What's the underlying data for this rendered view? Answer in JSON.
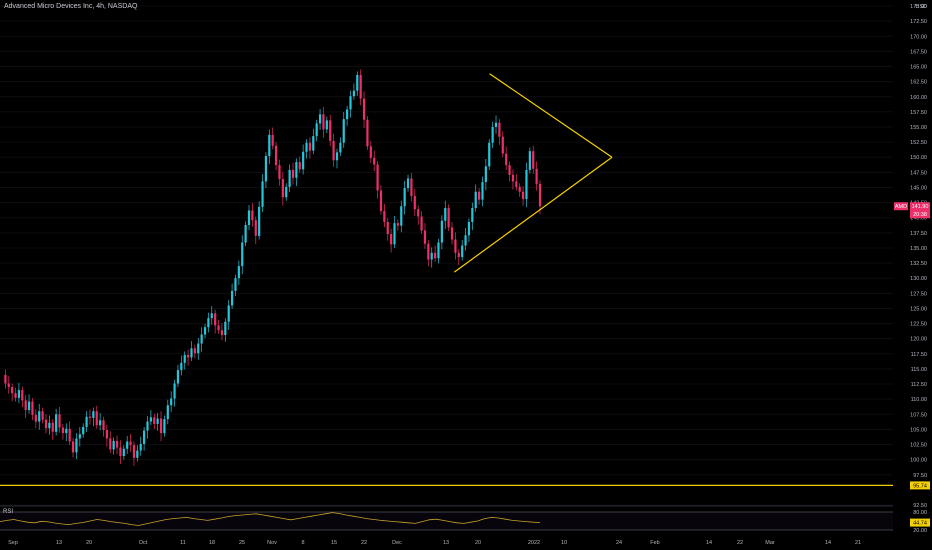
{
  "header": {
    "title": "Advanced Micro Devices Inc, 4h, NASDAQ"
  },
  "price_axis": {
    "currency": "USD",
    "ticks": [
      "175.00",
      "172.50",
      "170.00",
      "167.50",
      "165.00",
      "162.50",
      "160.00",
      "157.50",
      "155.00",
      "152.50",
      "150.00",
      "147.50",
      "145.00",
      "142.50",
      "140.00",
      "137.50",
      "135.00",
      "132.50",
      "130.00",
      "127.50",
      "125.00",
      "122.50",
      "120.00",
      "117.50",
      "115.00",
      "112.50",
      "110.00",
      "107.50",
      "105.00",
      "102.50",
      "100.00",
      "97.50",
      "92.50"
    ],
    "ticker_label": "AMD",
    "last_price": "141.90",
    "countdown": "20:38",
    "hline_price": "95.74"
  },
  "time_axis": {
    "labels": [
      "Sep",
      "13",
      "20",
      "Oct",
      "11",
      "18",
      "25",
      "Nov",
      "8",
      "15",
      "22",
      "Dec",
      "13",
      "20",
      "2022",
      "10",
      "24",
      "Feb",
      "14",
      "22",
      "Mar",
      "14",
      "21"
    ]
  },
  "rsi": {
    "label": "RSI",
    "ticks": [
      "80.00",
      "20.00"
    ],
    "current_value": "44.74"
  },
  "colors": {
    "bull": "#26c6da",
    "bear": "#ef2f6a",
    "trendline": "#f5d000",
    "background": "#000000",
    "axis_text": "#b2b5be",
    "rsi_line": "#c9a227"
  },
  "chart_data": {
    "type": "candlestick",
    "symbol": "AMD",
    "timeframe": "4h",
    "ylim": [
      92.5,
      176.0
    ],
    "x": [
      "Sep",
      "13",
      "20",
      "Oct",
      "11",
      "18",
      "25",
      "Nov",
      "8",
      "15",
      "22",
      "Dec",
      "13",
      "20",
      "2022",
      "10",
      "24",
      "Feb",
      "14",
      "22",
      "Mar",
      "14",
      "21"
    ],
    "close_path": [
      114.0,
      112.6,
      112.0,
      111.0,
      110.2,
      111.5,
      109.8,
      108.2,
      109.6,
      107.4,
      106.3,
      108.0,
      106.6,
      105.2,
      106.1,
      104.6,
      107.5,
      105.3,
      104.4,
      105.1,
      103.0,
      101.2,
      103.5,
      104.2,
      105.4,
      107.1,
      106.9,
      108.0,
      105.7,
      106.5,
      104.9,
      103.5,
      101.7,
      103.1,
      102.0,
      100.6,
      101.8,
      103.0,
      102.4,
      100.3,
      101.5,
      102.6,
      104.8,
      106.3,
      107.0,
      105.9,
      106.8,
      104.4,
      106.7,
      109.0,
      110.1,
      112.6,
      114.8,
      116.0,
      117.3,
      116.9,
      118.4,
      117.6,
      119.2,
      120.7,
      121.9,
      123.4,
      124.2,
      122.2,
      121.4,
      120.6,
      122.8,
      125.5,
      127.9,
      130.0,
      132.0,
      135.9,
      138.8,
      141.2,
      139.6,
      137.0,
      141.8,
      146.0,
      150.2,
      153.7,
      151.9,
      148.7,
      146.4,
      143.4,
      145.1,
      147.9,
      146.6,
      149.2,
      148.0,
      150.9,
      152.4,
      151.1,
      153.5,
      155.6,
      157.1,
      154.6,
      156.1,
      152.7,
      149.5,
      150.8,
      152.4,
      156.3,
      157.9,
      160.1,
      161.0,
      163.6,
      159.7,
      156.2,
      151.8,
      149.9,
      148.8,
      144.5,
      141.1,
      139.3,
      137.3,
      135.6,
      139.1,
      138.7,
      141.9,
      144.9,
      146.5,
      143.6,
      141.4,
      140.2,
      137.9,
      135.7,
      133.1,
      134.2,
      133.3,
      135.9,
      139.5,
      141.6,
      138.4,
      136.4,
      134.2,
      133.5,
      135.4,
      137.1,
      139.3,
      141.6,
      144.3,
      143.0,
      145.9,
      148.5,
      152.4,
      155.0,
      155.7,
      153.4,
      150.6,
      148.7,
      147.1,
      146.0,
      145.1,
      144.3,
      143.1,
      147.9,
      151.0,
      148.1,
      145.6,
      141.9
    ],
    "annotations": {
      "trendline_upper": {
        "from": [
          0.8,
          163.8
        ],
        "to": [
          1.0,
          150.0
        ]
      },
      "trendline_lower": {
        "from": [
          0.7423,
          131.0
        ],
        "to": [
          1.0,
          150.0
        ]
      },
      "horizontal_line": 95.74
    },
    "rsi": {
      "range": [
        0,
        100
      ],
      "levels": [
        80,
        20
      ],
      "path": [
        48,
        52,
        55,
        50,
        46,
        44,
        49,
        47,
        43,
        40,
        38,
        42,
        45,
        50,
        55,
        52,
        48,
        45,
        42,
        38,
        35,
        40,
        45,
        50,
        55,
        58,
        60,
        62,
        58,
        55,
        52,
        56,
        60,
        65,
        68,
        70,
        72,
        74,
        70,
        66,
        62,
        58,
        54,
        58,
        62,
        66,
        70,
        74,
        78,
        75,
        70,
        66,
        62,
        58,
        55,
        52,
        50,
        48,
        46,
        44,
        42,
        48,
        54,
        56,
        52,
        48,
        44,
        42,
        46,
        50,
        58,
        62,
        60,
        56,
        52,
        50,
        48,
        46,
        44.7
      ]
    }
  }
}
